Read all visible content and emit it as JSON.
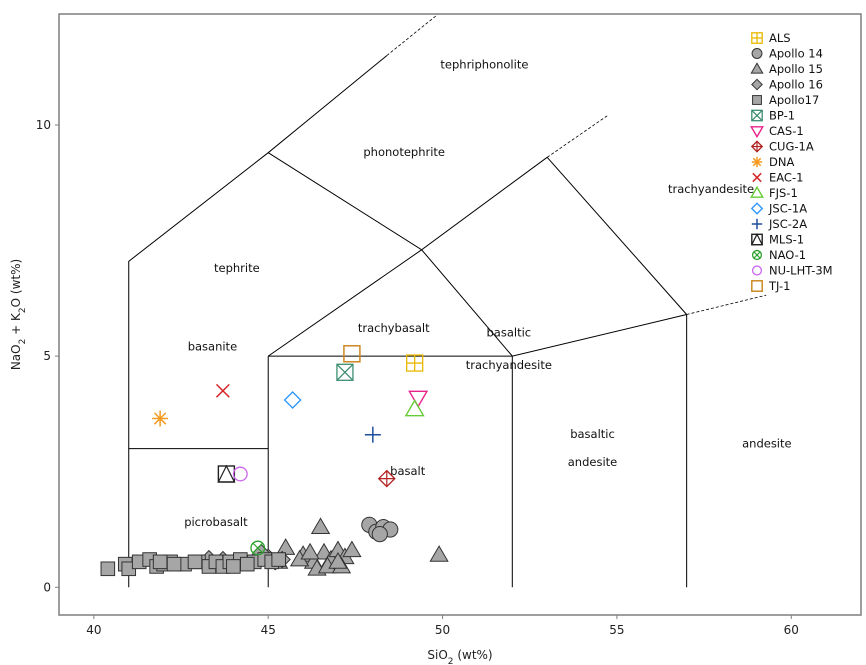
{
  "chart_data": {
    "type": "scatter",
    "xlabel": "SiO₂ (wt%)",
    "ylabel": "NaO₂ + K₂O (wt%)",
    "xlabel_parts": [
      "SiO",
      "2",
      " (wt%)"
    ],
    "ylabel_parts": [
      "NaO",
      "2",
      " + K",
      "2",
      "O (wt%)"
    ],
    "xlim": [
      39,
      62
    ],
    "ylim": [
      -0.6,
      12.4
    ],
    "xticks": [
      40,
      45,
      50,
      55,
      60
    ],
    "yticks": [
      0,
      5,
      10
    ],
    "grid": false,
    "legend_position": "top-right",
    "tas_boundaries": [
      [
        [
          41,
          0
        ],
        [
          41,
          7.05
        ],
        [
          45,
          9.4
        ],
        [
          48.4,
          11.5
        ],
        [
          52.5,
          14
        ]
      ],
      [
        [
          45,
          9.4
        ],
        [
          49.4,
          7.3
        ],
        [
          53,
          9.3
        ],
        [
          57.6,
          11.7
        ]
      ],
      [
        [
          41,
          3
        ],
        [
          45,
          3
        ]
      ],
      [
        [
          45,
          0
        ],
        [
          45,
          5
        ]
      ],
      [
        [
          45,
          5
        ],
        [
          49.4,
          7.3
        ],
        [
          52,
          5
        ]
      ],
      [
        [
          45,
          5
        ],
        [
          52,
          5
        ]
      ],
      [
        [
          52,
          0
        ],
        [
          52,
          5
        ],
        [
          57,
          5.9
        ],
        [
          63,
          7
        ]
      ],
      [
        [
          53,
          9.3
        ],
        [
          57,
          5.9
        ]
      ],
      [
        [
          57,
          0
        ],
        [
          57,
          5.9
        ]
      ]
    ],
    "region_labels": [
      {
        "text": "tephriphonolite",
        "x": 51.2,
        "y": 11.3
      },
      {
        "text": "phonotephrite",
        "x": 48.9,
        "y": 9.4
      },
      {
        "text": "trachyandesite",
        "x": 57.7,
        "y": 8.6
      },
      {
        "text": "tephrite",
        "x": 44.1,
        "y": 6.9
      },
      {
        "text": "basaltic",
        "x": 51.9,
        "y": 5.5
      },
      {
        "text": "trachyandesite",
        "x": 51.9,
        "y": 4.8
      },
      {
        "text": "trachybasalt",
        "x": 48.6,
        "y": 5.6
      },
      {
        "text": "basanite",
        "x": 43.4,
        "y": 5.2
      },
      {
        "text": "basaltic",
        "x": 54.3,
        "y": 3.3
      },
      {
        "text": "andesite",
        "x": 54.3,
        "y": 2.7
      },
      {
        "text": "andesite",
        "x": 59.3,
        "y": 3.1
      },
      {
        "text": "basalt",
        "x": 49.0,
        "y": 2.5
      },
      {
        "text": "picrobasalt",
        "x": 43.5,
        "y": 1.4
      }
    ],
    "series": [
      {
        "name": "ALS",
        "marker": "square-plus",
        "color": "#E8B800",
        "points": [
          [
            49.2,
            4.85
          ]
        ]
      },
      {
        "name": "Apollo 14",
        "marker": "circle",
        "color": "#999999",
        "points": [
          [
            47.9,
            1.35
          ],
          [
            48.1,
            1.2
          ],
          [
            48.3,
            1.3
          ],
          [
            48.5,
            1.25
          ],
          [
            48.2,
            1.15
          ]
        ]
      },
      {
        "name": "Apollo 15",
        "marker": "triangle",
        "color": "#999999",
        "points": [
          [
            46.5,
            1.3
          ],
          [
            49.9,
            0.7
          ],
          [
            46.0,
            0.7
          ],
          [
            46.3,
            0.55
          ],
          [
            46.6,
            0.75
          ],
          [
            46.8,
            0.6
          ],
          [
            47.0,
            0.8
          ],
          [
            47.2,
            0.65
          ],
          [
            47.4,
            0.8
          ],
          [
            45.5,
            0.85
          ],
          [
            45.9,
            0.6
          ],
          [
            46.4,
            0.4
          ],
          [
            46.7,
            0.45
          ],
          [
            47.1,
            0.45
          ],
          [
            45.3,
            0.55
          ],
          [
            47.0,
            0.55
          ],
          [
            46.2,
            0.75
          ]
        ]
      },
      {
        "name": "Apollo 16",
        "marker": "diamond",
        "color": "#999999",
        "points": [
          [
            43.3,
            0.62
          ],
          [
            43.7,
            0.6
          ],
          [
            44.2,
            0.55
          ],
          [
            44.6,
            0.58
          ],
          [
            45.0,
            0.65
          ],
          [
            45.4,
            0.6
          ],
          [
            44.8,
            0.75
          ],
          [
            45.2,
            0.55
          ]
        ]
      },
      {
        "name": "Apollo17",
        "marker": "square",
        "color": "#999999",
        "points": [
          [
            40.4,
            0.4
          ],
          [
            40.9,
            0.5
          ],
          [
            41.0,
            0.4
          ],
          [
            41.3,
            0.55
          ],
          [
            41.6,
            0.6
          ],
          [
            41.8,
            0.45
          ],
          [
            42.0,
            0.5
          ],
          [
            42.2,
            0.55
          ],
          [
            42.6,
            0.5
          ],
          [
            43.0,
            0.55
          ],
          [
            43.3,
            0.45
          ],
          [
            43.5,
            0.55
          ],
          [
            43.7,
            0.45
          ],
          [
            43.9,
            0.55
          ],
          [
            44.2,
            0.6
          ],
          [
            44.6,
            0.55
          ],
          [
            44.9,
            0.6
          ],
          [
            45.1,
            0.55
          ],
          [
            45.3,
            0.6
          ],
          [
            44.0,
            0.45
          ],
          [
            42.9,
            0.55
          ],
          [
            41.9,
            0.55
          ],
          [
            42.3,
            0.5
          ],
          [
            44.4,
            0.5
          ]
        ]
      },
      {
        "name": "BP-1",
        "marker": "square-x",
        "color": "#3D8E71",
        "points": [
          [
            47.2,
            4.65
          ]
        ]
      },
      {
        "name": "CAS-1",
        "marker": "triangle-down",
        "color": "#E8208A",
        "points": [
          [
            49.3,
            4.1
          ]
        ]
      },
      {
        "name": "CUG-1A",
        "marker": "diamond-plus",
        "color": "#B22222",
        "points": [
          [
            48.4,
            2.35
          ]
        ]
      },
      {
        "name": "DNA",
        "marker": "asterisk",
        "color": "#F59A1E",
        "points": [
          [
            41.9,
            3.65
          ]
        ]
      },
      {
        "name": "EAC-1",
        "marker": "x",
        "color": "#D62728",
        "points": [
          [
            43.7,
            4.25
          ]
        ]
      },
      {
        "name": "FJS-1",
        "marker": "triangle-open",
        "color": "#66CC33",
        "points": [
          [
            49.2,
            3.85
          ]
        ]
      },
      {
        "name": "JSC-1A",
        "marker": "diamond-open",
        "color": "#3399FF",
        "points": [
          [
            45.7,
            4.05
          ]
        ]
      },
      {
        "name": "JSC-2A",
        "marker": "plus",
        "color": "#1F4E9A",
        "points": [
          [
            48.0,
            3.3
          ]
        ]
      },
      {
        "name": "MLS-1",
        "marker": "square-triangle",
        "color": "#222222",
        "points": [
          [
            43.8,
            2.45
          ]
        ]
      },
      {
        "name": "NAO-1",
        "marker": "circle-x",
        "color": "#2CA02C",
        "points": [
          [
            44.7,
            0.85
          ]
        ]
      },
      {
        "name": "NU-LHT-3M",
        "marker": "circle-open",
        "color": "#CC66EE",
        "points": [
          [
            44.2,
            2.45
          ]
        ]
      },
      {
        "name": "TJ-1",
        "marker": "square-open",
        "color": "#CC8822",
        "points": [
          [
            47.4,
            5.05
          ]
        ]
      }
    ]
  }
}
